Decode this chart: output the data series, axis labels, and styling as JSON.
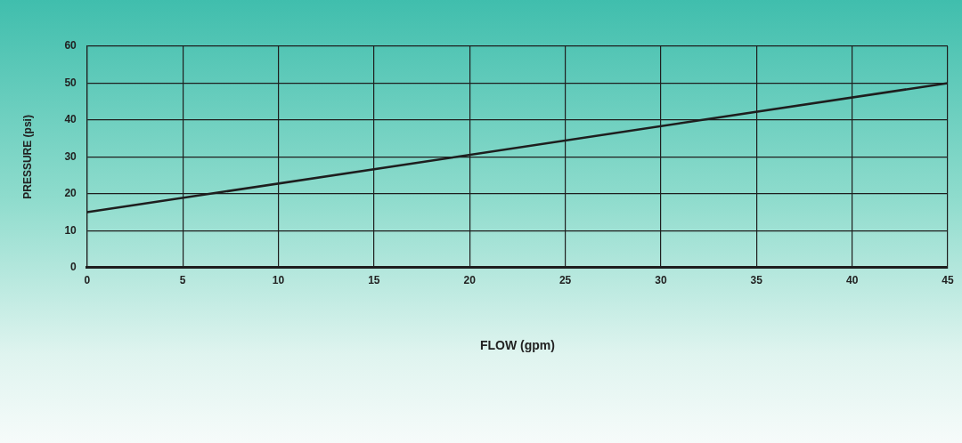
{
  "chart_data": {
    "type": "line",
    "xlabel": "FLOW (gpm)",
    "ylabel": "PRESSURE (psi)",
    "x": [
      0,
      45
    ],
    "series": [
      {
        "color": "#1e1e1e",
        "values": [
          15,
          50
        ]
      }
    ],
    "xlim": [
      0,
      45
    ],
    "xticks": [
      0,
      5,
      10,
      15,
      20,
      25,
      30,
      35,
      40,
      45
    ],
    "ylim": [
      0,
      60
    ],
    "yticks": [
      0,
      10,
      20,
      30,
      40,
      50,
      60
    ],
    "grid": true,
    "legend": false,
    "marker": "none",
    "line_style": "solid"
  }
}
